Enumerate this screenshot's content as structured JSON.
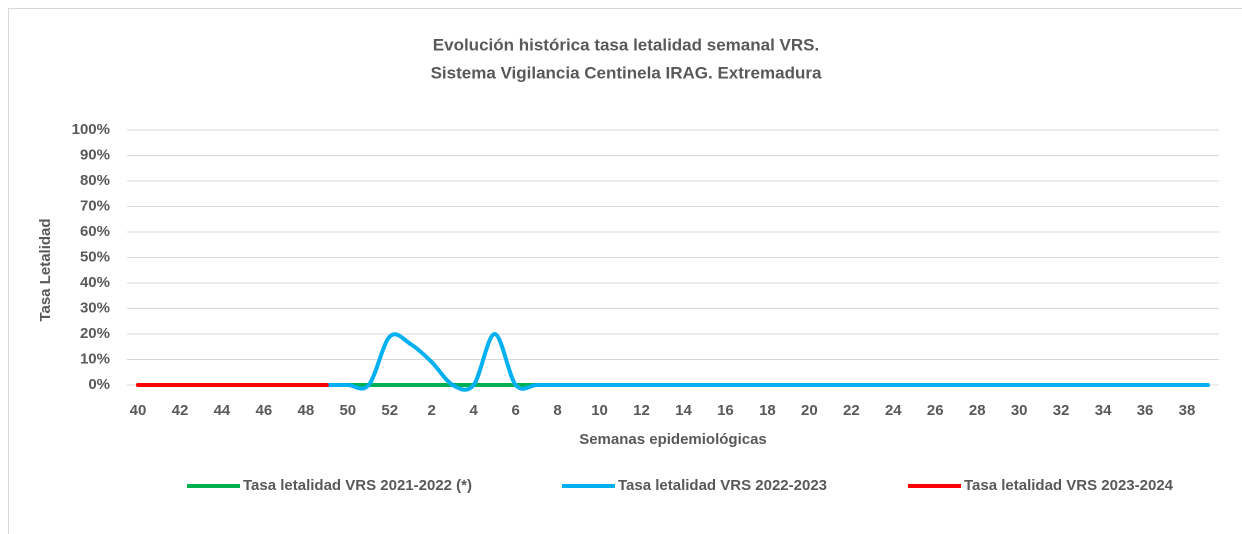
{
  "chart_data": {
    "type": "line",
    "title": [
      "Evolución histórica tasa letalidad semanal VRS.",
      "Sistema  Vigilancia Centinela IRAG. Extremadura"
    ],
    "x_label": "Semanas epidemiológicas",
    "y_label": "Tasa Letalidad",
    "categories": [
      "40",
      null,
      "42",
      null,
      "44",
      null,
      "46",
      null,
      "48",
      null,
      "50",
      null,
      "52",
      null,
      "2",
      null,
      "4",
      null,
      "6",
      null,
      "8",
      null,
      "10",
      null,
      "12",
      null,
      "14",
      null,
      "16",
      null,
      "18",
      null,
      "20",
      null,
      "22",
      null,
      "24",
      null,
      "26",
      null,
      "28",
      null,
      "30",
      null,
      "32",
      null,
      "34",
      null,
      "36",
      null,
      "38",
      null
    ],
    "series": [
      {
        "name": "Tasa letalidad VRS 2021-2022 (*)",
        "color": "#00b050",
        "values": [
          null,
          null,
          null,
          null,
          null,
          null,
          null,
          null,
          null,
          null,
          0,
          0,
          0,
          0,
          0,
          0,
          0,
          0,
          0,
          0,
          null,
          null,
          null,
          null,
          null,
          null,
          null,
          null,
          null,
          null,
          null,
          null,
          null,
          null,
          null,
          null,
          null,
          null,
          null,
          null,
          null,
          null,
          null,
          null,
          null,
          null,
          null,
          null,
          null,
          null,
          null,
          null
        ]
      },
      {
        "name": "Tasa letalidad VRS 2022-2023",
        "color": "#00b0f0",
        "values": [
          null,
          null,
          null,
          null,
          null,
          null,
          null,
          null,
          null,
          0,
          0,
          0,
          19,
          16,
          9,
          0,
          0,
          20,
          0,
          0,
          0,
          0,
          0,
          0,
          0,
          0,
          0,
          0,
          0,
          0,
          0,
          0,
          0,
          0,
          0,
          0,
          0,
          0,
          0,
          0,
          0,
          0,
          0,
          0,
          0,
          0,
          0,
          0,
          0,
          0,
          0,
          0
        ]
      },
      {
        "name": "Tasa letalidad VRS 2023-2024",
        "color": "#ff0000",
        "values": [
          0,
          0,
          0,
          0,
          0,
          0,
          0,
          0,
          0,
          0,
          null,
          null,
          null,
          null,
          null,
          null,
          null,
          null,
          null,
          null,
          null,
          null,
          null,
          null,
          null,
          null,
          null,
          null,
          null,
          null,
          null,
          null,
          null,
          null,
          null,
          null,
          null,
          null,
          null,
          null,
          null,
          null,
          null,
          null,
          null,
          null,
          null,
          null,
          null,
          null,
          null,
          null
        ]
      }
    ],
    "ylim": [
      0,
      100
    ],
    "yticks": [
      {
        "value": 0,
        "label": "0%"
      },
      {
        "value": 10,
        "label": "10%"
      },
      {
        "value": 20,
        "label": "20%"
      },
      {
        "value": 30,
        "label": "30%"
      },
      {
        "value": 40,
        "label": "40%"
      },
      {
        "value": 50,
        "label": "50%"
      },
      {
        "value": 60,
        "label": "60%"
      },
      {
        "value": 70,
        "label": "70%"
      },
      {
        "value": 80,
        "label": "80%"
      },
      {
        "value": 90,
        "label": "90%"
      },
      {
        "value": 100,
        "label": "100%"
      }
    ],
    "grid": true,
    "smooth": true,
    "legend": "bottom"
  }
}
